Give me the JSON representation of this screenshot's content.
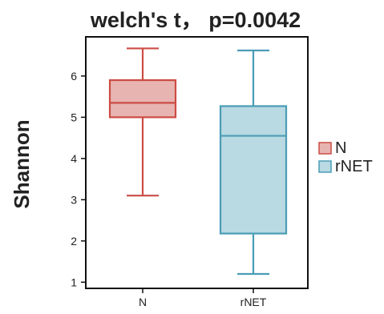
{
  "chart_data": {
    "type": "box",
    "title": "welch's t， p=0.0042",
    "xlabel": "",
    "ylabel": "Shannon",
    "categories": [
      "N",
      "rNET"
    ],
    "ylim": [
      0.85,
      6.95
    ],
    "yticks": [
      1,
      2,
      3,
      4,
      5,
      6
    ],
    "grid": false,
    "legend_position": "right",
    "series": [
      {
        "name": "N",
        "whisker_low": 3.1,
        "q1": 5.0,
        "median": 5.35,
        "q3": 5.9,
        "whisker_high": 6.67,
        "fill": "#e8b4b2",
        "stroke": "#cc4c44"
      },
      {
        "name": "rNET",
        "whisker_low": 1.2,
        "q1": 2.18,
        "median": 4.55,
        "q3": 5.27,
        "whisker_high": 6.62,
        "fill": "#b9d9e3",
        "stroke": "#4a9db5"
      }
    ]
  }
}
